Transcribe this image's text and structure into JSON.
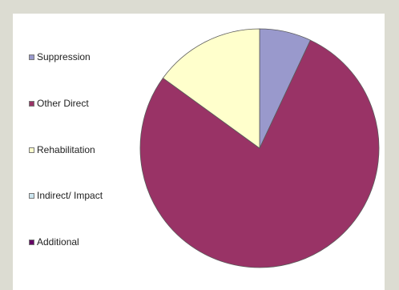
{
  "chart_data": {
    "type": "pie",
    "title": "",
    "legend_position": "left",
    "slices": [
      {
        "label": "Suppression",
        "value": 7.0,
        "color": "#9999cc"
      },
      {
        "label": "Other Direct",
        "value": 78.0,
        "color": "#993366"
      },
      {
        "label": "Rehabilitation",
        "value": 15.0,
        "color": "#ffffcc"
      },
      {
        "label": "Indirect/ Impact",
        "value": 0,
        "color": "#cce6f0"
      },
      {
        "label": "Additional",
        "value": 0,
        "color": "#660066"
      }
    ]
  }
}
